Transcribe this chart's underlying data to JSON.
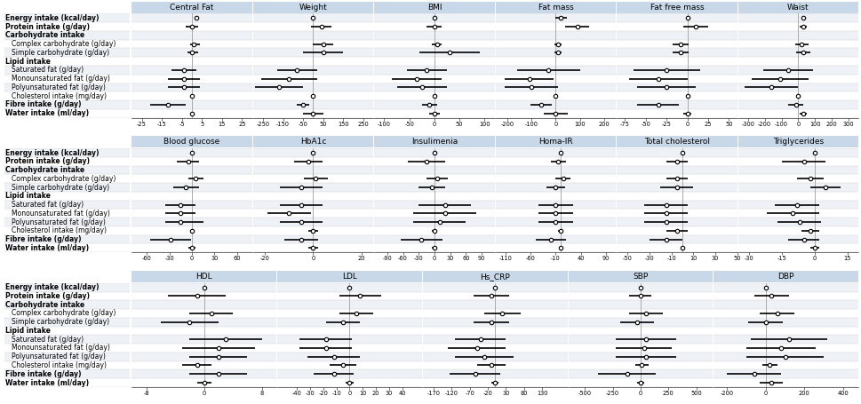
{
  "row_labels": [
    "Energy intake (kcal/day)",
    "Protein intake (g/day)",
    "Carbohydrate intake",
    "  Complex carbohydrate (g/day)",
    "  Simple carbohydrate (g/day)",
    "Lipid intake",
    "  Saturated fat (g/day)",
    "  Monounsaturated fat (g/day)",
    "  Polyunsaturated fat (g/day)",
    "  Cholesterol intake (mg/day)",
    "Fibre intake (g/day)",
    "Water intake (ml/day)"
  ],
  "bold_rows": [
    0,
    1,
    2,
    5,
    10,
    11
  ],
  "header_only_rows": [
    2,
    5
  ],
  "indent_rows": [
    3,
    4,
    6,
    7,
    8,
    9
  ],
  "row1_panels": [
    {
      "title": "Central Fat",
      "xlim": [
        -30,
        30
      ],
      "xticks": [
        -25,
        -15,
        -5,
        5,
        15,
        25
      ],
      "data": [
        [
          2,
          2,
          2
        ],
        [
          0,
          -3,
          3
        ],
        [
          null,
          null,
          null
        ],
        [
          1,
          -1,
          4
        ],
        [
          0,
          -2,
          3
        ],
        [
          null,
          null,
          null
        ],
        [
          -4,
          -10,
          2
        ],
        [
          -4,
          -12,
          4
        ],
        [
          -4,
          -12,
          4
        ],
        [
          0,
          -1,
          1
        ],
        [
          -12,
          -21,
          -3
        ],
        [
          0,
          -1,
          1
        ]
      ]
    },
    {
      "title": "Weight",
      "xlim": [
        -300,
        300
      ],
      "xticks": [
        -250,
        -150,
        -50,
        50,
        150,
        250
      ],
      "data": [
        [
          0,
          0,
          0
        ],
        [
          40,
          -10,
          90
        ],
        [
          null,
          null,
          null
        ],
        [
          50,
          0,
          100
        ],
        [
          50,
          -50,
          150
        ],
        [
          null,
          null,
          null
        ],
        [
          -80,
          -180,
          20
        ],
        [
          -120,
          -260,
          20
        ],
        [
          -170,
          -290,
          -50
        ],
        [
          0,
          0,
          0
        ],
        [
          -50,
          -80,
          -20
        ],
        [
          0,
          -50,
          50
        ]
      ]
    },
    {
      "title": "BMI",
      "xlim": [
        -120,
        120
      ],
      "xticks": [
        -100,
        -50,
        0,
        50,
        100
      ],
      "data": [
        [
          0,
          0,
          0
        ],
        [
          0,
          -15,
          15
        ],
        [
          null,
          null,
          null
        ],
        [
          5,
          -5,
          15
        ],
        [
          30,
          -30,
          90
        ],
        [
          null,
          null,
          null
        ],
        [
          -15,
          -55,
          25
        ],
        [
          -35,
          -85,
          15
        ],
        [
          -25,
          -75,
          25
        ],
        [
          0,
          0,
          0
        ],
        [
          -10,
          -25,
          5
        ],
        [
          0,
          -10,
          10
        ]
      ]
    },
    {
      "title": "Fat mass",
      "xlim": [
        -250,
        250
      ],
      "xticks": [
        -200,
        -100,
        0,
        100,
        200
      ],
      "data": [
        [
          20,
          0,
          45
        ],
        [
          90,
          40,
          140
        ],
        [
          null,
          null,
          null
        ],
        [
          10,
          -5,
          25
        ],
        [
          10,
          -5,
          25
        ],
        [
          null,
          null,
          null
        ],
        [
          -30,
          -160,
          100
        ],
        [
          -110,
          -210,
          -10
        ],
        [
          -100,
          -210,
          10
        ],
        [
          0,
          0,
          0
        ],
        [
          -60,
          -105,
          -15
        ],
        [
          0,
          -50,
          50
        ]
      ]
    },
    {
      "title": "Fat free mass",
      "xlim": [
        -85,
        60
      ],
      "xticks": [
        -75,
        -50,
        -25,
        0,
        25,
        50
      ],
      "data": [
        [
          0,
          0,
          0
        ],
        [
          10,
          -5,
          25
        ],
        [
          null,
          null,
          null
        ],
        [
          -8,
          -18,
          2
        ],
        [
          -8,
          -18,
          2
        ],
        [
          null,
          null,
          null
        ],
        [
          -25,
          -65,
          15
        ],
        [
          -35,
          -70,
          0
        ],
        [
          -25,
          -60,
          10
        ],
        [
          0,
          0,
          0
        ],
        [
          -35,
          -60,
          -10
        ],
        [
          0,
          -5,
          5
        ]
      ]
    },
    {
      "title": "Waist",
      "xlim": [
        -360,
        360
      ],
      "xticks": [
        -300,
        -200,
        -100,
        0,
        100,
        200,
        300
      ],
      "data": [
        [
          30,
          30,
          30
        ],
        [
          30,
          10,
          50
        ],
        [
          null,
          null,
          null
        ],
        [
          20,
          -20,
          60
        ],
        [
          30,
          -10,
          70
        ],
        [
          null,
          null,
          null
        ],
        [
          -60,
          -210,
          90
        ],
        [
          -110,
          -280,
          60
        ],
        [
          -160,
          -320,
          0
        ],
        [
          0,
          0,
          0
        ],
        [
          -15,
          -60,
          30
        ],
        [
          30,
          10,
          50
        ]
      ]
    }
  ],
  "row2_panels": [
    {
      "title": "Blood glucose",
      "xlim": [
        -80,
        80
      ],
      "xticks": [
        -60,
        -30,
        0,
        30,
        60
      ],
      "data": [
        [
          0,
          0,
          0
        ],
        [
          -5,
          -20,
          10
        ],
        [
          null,
          null,
          null
        ],
        [
          5,
          -5,
          15
        ],
        [
          -8,
          -25,
          9
        ],
        [
          null,
          null,
          null
        ],
        [
          -15,
          -35,
          5
        ],
        [
          -15,
          -35,
          5
        ],
        [
          -15,
          -35,
          15
        ],
        [
          0,
          0,
          0
        ],
        [
          -28,
          -55,
          -1
        ],
        [
          0,
          -5,
          5
        ]
      ]
    },
    {
      "title": "HbA1c",
      "xlim": [
        -25,
        25
      ],
      "xticks": [
        -20,
        0,
        20
      ],
      "data": [
        [
          0,
          0,
          0
        ],
        [
          -2,
          -8,
          4
        ],
        [
          null,
          null,
          null
        ],
        [
          1,
          -4,
          6
        ],
        [
          -5,
          -14,
          4
        ],
        [
          null,
          null,
          null
        ],
        [
          -5,
          -14,
          4
        ],
        [
          -10,
          -19,
          -1
        ],
        [
          -5,
          -14,
          4
        ],
        [
          0,
          -2,
          2
        ],
        [
          -5,
          -12,
          2
        ],
        [
          0,
          -2,
          2
        ]
      ]
    },
    {
      "title": "Insulimenia",
      "xlim": [
        -115,
        115
      ],
      "xticks": [
        -90,
        -60,
        -30,
        0,
        30,
        60,
        90
      ],
      "data": [
        [
          0,
          0,
          0
        ],
        [
          -15,
          -50,
          20
        ],
        [
          null,
          null,
          null
        ],
        [
          5,
          -15,
          25
        ],
        [
          -5,
          -30,
          20
        ],
        [
          null,
          null,
          null
        ],
        [
          20,
          -30,
          70
        ],
        [
          20,
          -40,
          80
        ],
        [
          10,
          -40,
          60
        ],
        [
          0,
          -5,
          5
        ],
        [
          -25,
          -65,
          15
        ],
        [
          0,
          -5,
          5
        ]
      ]
    },
    {
      "title": "Homa-IR",
      "xlim": [
        -130,
        110
      ],
      "xticks": [
        -110,
        -60,
        -10,
        40,
        90
      ],
      "data": [
        [
          0,
          0,
          0
        ],
        [
          -5,
          -20,
          10
        ],
        [
          null,
          null,
          null
        ],
        [
          5,
          -10,
          20
        ],
        [
          -10,
          -28,
          8
        ],
        [
          null,
          null,
          null
        ],
        [
          -10,
          -45,
          25
        ],
        [
          -10,
          -45,
          25
        ],
        [
          -10,
          -45,
          25
        ],
        [
          0,
          -5,
          5
        ],
        [
          -20,
          -50,
          10
        ],
        [
          0,
          -2,
          2
        ]
      ]
    },
    {
      "title": "Total cholesterol",
      "xlim": [
        -60,
        50
      ],
      "xticks": [
        -50,
        -30,
        -10,
        10,
        30,
        50
      ],
      "data": [
        [
          0,
          0,
          0
        ],
        [
          -5,
          -15,
          5
        ],
        [
          null,
          null,
          null
        ],
        [
          -5,
          -15,
          5
        ],
        [
          -5,
          -20,
          10
        ],
        [
          null,
          null,
          null
        ],
        [
          -15,
          -35,
          5
        ],
        [
          -15,
          -35,
          5
        ],
        [
          -15,
          -35,
          5
        ],
        [
          -5,
          -15,
          5
        ],
        [
          -15,
          -30,
          0
        ],
        [
          0,
          -2,
          2
        ]
      ]
    },
    {
      "title": "Triglycerides",
      "xlim": [
        -35,
        20
      ],
      "xticks": [
        -30,
        -15,
        0,
        15
      ],
      "data": [
        [
          0,
          0,
          0
        ],
        [
          -5,
          -15,
          5
        ],
        [
          null,
          null,
          null
        ],
        [
          -2,
          -8,
          4
        ],
        [
          5,
          -2,
          12
        ],
        [
          null,
          null,
          null
        ],
        [
          -8,
          -18,
          2
        ],
        [
          -10,
          -22,
          2
        ],
        [
          -7,
          -17,
          3
        ],
        [
          -2,
          -6,
          2
        ],
        [
          -5,
          -12,
          2
        ],
        [
          0,
          -2,
          2
        ]
      ]
    }
  ],
  "row3_panels": [
    {
      "title": "HDL",
      "xlim": [
        -10,
        10
      ],
      "xticks": [
        -8,
        0,
        8
      ],
      "data": [
        [
          0,
          0,
          0
        ],
        [
          -1,
          -5,
          3
        ],
        [
          null,
          null,
          null
        ],
        [
          1,
          -2,
          4
        ],
        [
          -2,
          -6,
          2
        ],
        [
          null,
          null,
          null
        ],
        [
          3,
          -2,
          8
        ],
        [
          2,
          -3,
          7
        ],
        [
          2,
          -2,
          6
        ],
        [
          -1,
          -3,
          1
        ],
        [
          2,
          -2,
          6
        ],
        [
          0,
          -1,
          1
        ]
      ]
    },
    {
      "title": "LDL",
      "xlim": [
        -55,
        55
      ],
      "xticks": [
        -40,
        -30,
        -20,
        -10,
        0,
        10,
        20,
        30,
        40
      ],
      "data": [
        [
          0,
          0,
          0
        ],
        [
          8,
          -8,
          24
        ],
        [
          null,
          null,
          null
        ],
        [
          5,
          -8,
          18
        ],
        [
          -5,
          -18,
          8
        ],
        [
          null,
          null,
          null
        ],
        [
          -18,
          -38,
          2
        ],
        [
          -18,
          -38,
          2
        ],
        [
          -12,
          -32,
          8
        ],
        [
          -5,
          -15,
          5
        ],
        [
          -12,
          -27,
          3
        ],
        [
          0,
          -3,
          3
        ]
      ]
    },
    {
      "title": "Hs_CRP",
      "xlim": [
        -200,
        200
      ],
      "xticks": [
        -170,
        -120,
        -70,
        -20,
        30,
        80,
        130
      ],
      "data": [
        [
          0,
          0,
          0
        ],
        [
          -10,
          -60,
          40
        ],
        [
          null,
          null,
          null
        ],
        [
          20,
          -30,
          70
        ],
        [
          -10,
          -60,
          40
        ],
        [
          null,
          null,
          null
        ],
        [
          -40,
          -110,
          30
        ],
        [
          -50,
          -130,
          30
        ],
        [
          -30,
          -110,
          50
        ],
        [
          -10,
          -50,
          30
        ],
        [
          -55,
          -125,
          15
        ],
        [
          0,
          -10,
          10
        ]
      ]
    },
    {
      "title": "SBP",
      "xlim": [
        -650,
        650
      ],
      "xticks": [
        -500,
        -250,
        0,
        250,
        500
      ],
      "data": [
        [
          0,
          0,
          0
        ],
        [
          0,
          -100,
          100
        ],
        [
          null,
          null,
          null
        ],
        [
          50,
          -100,
          200
        ],
        [
          -30,
          -180,
          120
        ],
        [
          null,
          null,
          null
        ],
        [
          50,
          -220,
          320
        ],
        [
          30,
          -220,
          280
        ],
        [
          50,
          -220,
          320
        ],
        [
          10,
          -50,
          70
        ],
        [
          -120,
          -380,
          140
        ],
        [
          0,
          -30,
          30
        ]
      ]
    },
    {
      "title": "DBP",
      "xlim": [
        -270,
        480
      ],
      "xticks": [
        -200,
        0,
        200,
        400
      ],
      "data": [
        [
          0,
          0,
          0
        ],
        [
          30,
          -60,
          120
        ],
        [
          null,
          null,
          null
        ],
        [
          60,
          -30,
          150
        ],
        [
          0,
          -90,
          90
        ],
        [
          null,
          null,
          null
        ],
        [
          120,
          -80,
          320
        ],
        [
          80,
          -100,
          260
        ],
        [
          100,
          -100,
          300
        ],
        [
          20,
          -20,
          60
        ],
        [
          -60,
          -200,
          80
        ],
        [
          30,
          -30,
          90
        ]
      ]
    }
  ],
  "bg_color_header": "#c8d8e8",
  "bg_color_odd": "#eef2f7",
  "bg_color_even": "#ffffff",
  "line_color": "black",
  "zero_line_color": "#aaaaaa",
  "title_fontsize": 6.5,
  "label_fontsize": 5.5,
  "tick_fontsize": 4.8
}
